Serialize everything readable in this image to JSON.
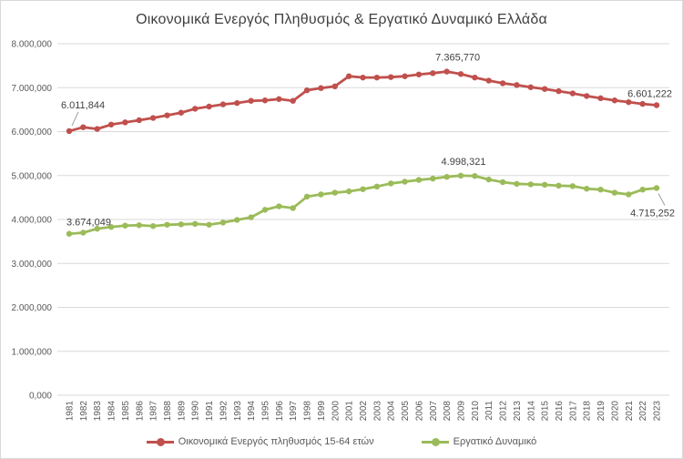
{
  "chart_data": {
    "type": "line",
    "title": "Οικονομικά Ενεργός Πληθυσμός & Εργατικό Δυναμικό Ελλάδα",
    "xlabel": "",
    "ylabel": "",
    "ylim": [
      0,
      8000000
    ],
    "grid": "horizontal",
    "legend_position": "bottom",
    "categories": [
      1981,
      1982,
      1983,
      1984,
      1985,
      1986,
      1987,
      1988,
      1989,
      1990,
      1991,
      1992,
      1993,
      1994,
      1995,
      1996,
      1997,
      1998,
      1999,
      2000,
      2001,
      2002,
      2003,
      2004,
      2005,
      2006,
      2007,
      2008,
      2009,
      2010,
      2011,
      2012,
      2013,
      2014,
      2015,
      2016,
      2017,
      2018,
      2019,
      2020,
      2021,
      2022,
      2023
    ],
    "y_ticks": [
      {
        "value": 0,
        "label": "0,000"
      },
      {
        "value": 1000000,
        "label": "1.000,000"
      },
      {
        "value": 2000000,
        "label": "2.000,000"
      },
      {
        "value": 3000000,
        "label": "3.000,000"
      },
      {
        "value": 4000000,
        "label": "4.000,000"
      },
      {
        "value": 5000000,
        "label": "5.000,000"
      },
      {
        "value": 6000000,
        "label": "6.000,000"
      },
      {
        "value": 7000000,
        "label": "7.000,000"
      },
      {
        "value": 8000000,
        "label": "8.000,000"
      }
    ],
    "series": [
      {
        "name": "Οικονομικά Ενεργός πληθυσμός 15-64 ετών",
        "color": "#C0504D",
        "values": [
          6011844,
          6100000,
          6060000,
          6160000,
          6210000,
          6260000,
          6310000,
          6370000,
          6430000,
          6520000,
          6570000,
          6620000,
          6650000,
          6700000,
          6710000,
          6740000,
          6700000,
          6940000,
          6990000,
          7030000,
          7260000,
          7230000,
          7230000,
          7240000,
          7260000,
          7300000,
          7330000,
          7365770,
          7310000,
          7230000,
          7160000,
          7100000,
          7060000,
          7010000,
          6970000,
          6920000,
          6870000,
          6810000,
          6760000,
          6710000,
          6670000,
          6630000,
          6601222
        ]
      },
      {
        "name": "Εργατικό Δυναμικό",
        "color": "#9BBB59",
        "values": [
          3674049,
          3700000,
          3790000,
          3830000,
          3860000,
          3870000,
          3850000,
          3880000,
          3890000,
          3900000,
          3880000,
          3930000,
          3990000,
          4050000,
          4220000,
          4300000,
          4260000,
          4520000,
          4570000,
          4610000,
          4640000,
          4690000,
          4750000,
          4820000,
          4860000,
          4900000,
          4930000,
          4970000,
          4998321,
          4990000,
          4910000,
          4850000,
          4810000,
          4800000,
          4790000,
          4770000,
          4760000,
          4700000,
          4680000,
          4610000,
          4570000,
          4680000,
          4715252
        ]
      }
    ],
    "annotations": [
      {
        "series": 0,
        "year": 1981,
        "text": "6.011,844",
        "placement": "above-leader"
      },
      {
        "series": 0,
        "year": 2008,
        "text": "7.365,770",
        "placement": "above",
        "dx": 12
      },
      {
        "series": 0,
        "year": 2023,
        "text": "6.601,222",
        "placement": "right-above"
      },
      {
        "series": 1,
        "year": 1981,
        "text": "3.674,049",
        "placement": "above-right"
      },
      {
        "series": 1,
        "year": 2009,
        "text": "4.998,321",
        "placement": "above",
        "dx": 3
      },
      {
        "series": 1,
        "year": 2023,
        "text": "4.715,252",
        "placement": "below-leader"
      }
    ],
    "colors": {
      "grid": "#D9D9D9",
      "axis_text": "#595959",
      "label_text": "#404040",
      "leader": "#9E9E9E"
    }
  }
}
